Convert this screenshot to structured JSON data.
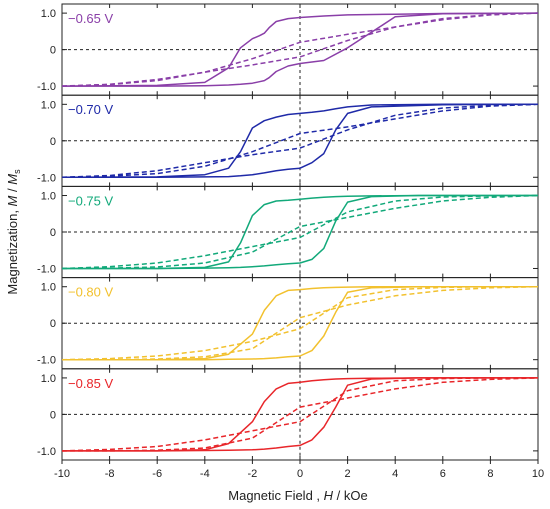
{
  "chart_data": {
    "type": "line",
    "xlabel": {
      "prefix": "Magnetic Field , ",
      "var": "H",
      "suffix": " / kOe"
    },
    "ylabel": {
      "prefix": "Magnetization, ",
      "var1": "M",
      "sep": " / ",
      "var2": "M",
      "sub": "s"
    },
    "xlim": [
      -10,
      10
    ],
    "ylim": [
      -1.25,
      1.25
    ],
    "x_ticks": [
      -10,
      -8,
      -6,
      -4,
      -2,
      0,
      2,
      4,
      6,
      8,
      10
    ],
    "x_tick_labels": [
      "-10",
      "-8",
      "-6",
      "-4",
      "-2",
      "0",
      "2",
      "4",
      "6",
      "8",
      "10"
    ],
    "y_ticks": [
      -1,
      0,
      1
    ],
    "y_tick_labels": [
      "-1.0",
      "0",
      "1.0"
    ],
    "reference_lines": {
      "vertical_x": 0,
      "horizontal_y": 0,
      "style": "dashed"
    },
    "panels": [
      {
        "label": "−0.65 V",
        "color": "#8a3fa8",
        "solid": {
          "x": [
            -10,
            -6,
            -4,
            -3,
            -2.5,
            -2,
            -1.7,
            -1.5,
            -1.3,
            -1,
            -0.5,
            0,
            1,
            2,
            4,
            6,
            10
          ],
          "ascending": [
            -1.0,
            -1.0,
            -0.99,
            -0.97,
            -0.95,
            -0.92,
            -0.88,
            -0.85,
            -0.77,
            -0.6,
            -0.45,
            -0.38,
            -0.3,
            0.05,
            0.9,
            0.98,
            1.0
          ],
          "descending": [
            -1.0,
            -0.98,
            -0.9,
            -0.5,
            0.05,
            0.3,
            0.38,
            0.45,
            0.6,
            0.77,
            0.85,
            0.88,
            0.92,
            0.95,
            0.97,
            0.99,
            1.0
          ]
        },
        "dashed": {
          "x": [
            -10,
            -8,
            -6,
            -4,
            -2,
            0,
            2,
            4,
            6,
            8,
            10
          ],
          "ascending": [
            -1.0,
            -0.95,
            -0.82,
            -0.62,
            -0.42,
            -0.2,
            0.25,
            0.62,
            0.85,
            0.96,
            1.0
          ],
          "descending": [
            -1.0,
            -0.96,
            -0.85,
            -0.62,
            -0.25,
            0.2,
            0.42,
            0.62,
            0.82,
            0.95,
            1.0
          ]
        }
      },
      {
        "label": "−0.70 V",
        "color": "#1f2aa8",
        "solid": {
          "x": [
            -10,
            -6,
            -4,
            -3,
            -2.5,
            -2,
            -1.5,
            -1,
            -0.5,
            0,
            0.5,
            1,
            1.5,
            2,
            3,
            6,
            10
          ],
          "ascending": [
            -1.0,
            -1.0,
            -0.99,
            -0.98,
            -0.96,
            -0.93,
            -0.88,
            -0.82,
            -0.78,
            -0.75,
            -0.6,
            -0.35,
            0.3,
            0.75,
            0.93,
            0.99,
            1.0
          ],
          "descending": [
            -1.0,
            -0.99,
            -0.93,
            -0.75,
            -0.3,
            0.35,
            0.55,
            0.65,
            0.72,
            0.75,
            0.78,
            0.82,
            0.88,
            0.93,
            0.98,
            1.0,
            1.0
          ]
        },
        "dashed": {
          "x": [
            -10,
            -8,
            -6,
            -4,
            -2,
            0,
            2,
            4,
            6,
            8,
            10
          ],
          "ascending": [
            -1.0,
            -0.95,
            -0.82,
            -0.6,
            -0.38,
            -0.2,
            0.3,
            0.7,
            0.9,
            0.97,
            1.0
          ],
          "descending": [
            -1.0,
            -0.97,
            -0.9,
            -0.7,
            -0.3,
            0.2,
            0.38,
            0.6,
            0.82,
            0.95,
            1.0
          ]
        }
      },
      {
        "label": "−0.75 V",
        "color": "#12a97a",
        "solid": {
          "x": [
            -10,
            -6,
            -4,
            -3,
            -2.5,
            -2,
            -1.5,
            -1,
            -0.5,
            0,
            0.5,
            1,
            1.5,
            2,
            3,
            5,
            10
          ],
          "ascending": [
            -1.0,
            -1.0,
            -0.99,
            -0.98,
            -0.97,
            -0.95,
            -0.93,
            -0.9,
            -0.87,
            -0.85,
            -0.75,
            -0.45,
            0.3,
            0.82,
            0.97,
            1.0,
            1.0
          ],
          "descending": [
            -1.0,
            -1.0,
            -0.97,
            -0.82,
            -0.3,
            0.45,
            0.75,
            0.85,
            0.87,
            0.9,
            0.93,
            0.95,
            0.97,
            0.98,
            0.99,
            1.0,
            1.0
          ]
        },
        "dashed": {
          "x": [
            -10,
            -8,
            -6,
            -4,
            -2,
            0,
            2,
            4,
            6,
            8,
            10
          ],
          "ascending": [
            -1.0,
            -0.95,
            -0.85,
            -0.65,
            -0.4,
            -0.15,
            0.55,
            0.85,
            0.96,
            0.99,
            1.0
          ],
          "descending": [
            -1.0,
            -0.99,
            -0.96,
            -0.85,
            -0.55,
            0.15,
            0.4,
            0.65,
            0.85,
            0.95,
            1.0
          ]
        }
      },
      {
        "label": "−0.80 V",
        "color": "#f2c12e",
        "solid": {
          "x": [
            -10,
            -6,
            -4,
            -3,
            -2,
            -1.5,
            -1,
            -0.5,
            0,
            0.5,
            1,
            1.5,
            2,
            3,
            5,
            10
          ],
          "ascending": [
            -1.0,
            -1.0,
            -1.0,
            -0.99,
            -0.98,
            -0.97,
            -0.95,
            -0.92,
            -0.9,
            -0.75,
            -0.35,
            0.3,
            0.85,
            0.97,
            1.0,
            1.0
          ],
          "descending": [
            -1.0,
            -1.0,
            -0.97,
            -0.85,
            -0.3,
            0.35,
            0.75,
            0.9,
            0.92,
            0.95,
            0.97,
            0.98,
            0.99,
            1.0,
            1.0,
            1.0
          ]
        },
        "dashed": {
          "x": [
            -10,
            -8,
            -6,
            -4,
            -2,
            0,
            2,
            4,
            6,
            8,
            10
          ],
          "ascending": [
            -1.0,
            -0.97,
            -0.9,
            -0.75,
            -0.5,
            -0.15,
            0.7,
            0.92,
            0.98,
            1.0,
            1.0
          ],
          "descending": [
            -1.0,
            -1.0,
            -0.98,
            -0.92,
            -0.7,
            0.15,
            0.5,
            0.75,
            0.9,
            0.97,
            1.0
          ]
        }
      },
      {
        "label": "−0.85 V",
        "color": "#e8262a",
        "solid": {
          "x": [
            -10,
            -6,
            -4,
            -3,
            -2,
            -1.5,
            -1,
            -0.5,
            0,
            0.5,
            1,
            1.5,
            2,
            3,
            5,
            10
          ],
          "ascending": [
            -1.0,
            -1.0,
            -0.99,
            -0.98,
            -0.97,
            -0.95,
            -0.92,
            -0.88,
            -0.85,
            -0.7,
            -0.35,
            0.2,
            0.8,
            0.97,
            1.0,
            1.0
          ],
          "descending": [
            -1.0,
            -1.0,
            -0.97,
            -0.8,
            -0.2,
            0.35,
            0.7,
            0.85,
            0.88,
            0.92,
            0.95,
            0.97,
            0.98,
            0.99,
            1.0,
            1.0
          ]
        },
        "dashed": {
          "x": [
            -10,
            -8,
            -6,
            -4,
            -2,
            0,
            2,
            4,
            6,
            8,
            10
          ],
          "ascending": [
            -1.0,
            -0.96,
            -0.88,
            -0.7,
            -0.45,
            -0.2,
            0.65,
            0.92,
            0.98,
            1.0,
            1.0
          ],
          "descending": [
            -1.0,
            -1.0,
            -0.98,
            -0.92,
            -0.65,
            0.2,
            0.45,
            0.7,
            0.88,
            0.96,
            1.0
          ]
        }
      }
    ]
  }
}
